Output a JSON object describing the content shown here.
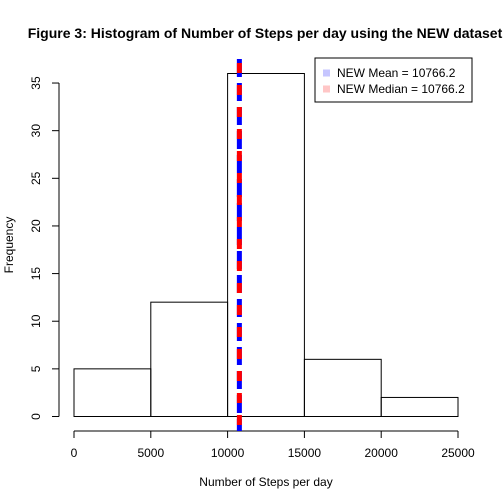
{
  "chart_data": {
    "type": "bar",
    "title": "Figure 3: Histogram of Number of Steps per day using the NEW dataset",
    "xlabel": "Number of Steps per day",
    "ylabel": "Frequency",
    "bins": [
      {
        "from": 0,
        "to": 5000,
        "count": 5
      },
      {
        "from": 5000,
        "to": 10000,
        "count": 12
      },
      {
        "from": 10000,
        "to": 15000,
        "count": 36
      },
      {
        "from": 15000,
        "to": 20000,
        "count": 6
      },
      {
        "from": 20000,
        "to": 25000,
        "count": 2
      }
    ],
    "xlim": [
      0,
      25000
    ],
    "ylim": [
      0,
      36
    ],
    "xticks": [
      0,
      5000,
      10000,
      15000,
      20000,
      25000
    ],
    "yticks": [
      0,
      5,
      10,
      15,
      20,
      25,
      30,
      35
    ],
    "grid": false,
    "legend_position": "top-right",
    "lines": [
      {
        "name": "NEW Mean",
        "value": 10766.2,
        "color": "#0000ff",
        "style": "dashed"
      },
      {
        "name": "NEW Median",
        "value": 10766.2,
        "color": "#ff0000",
        "style": "dashed"
      }
    ],
    "legend": [
      {
        "label": "NEW Mean =  10766.2",
        "color": "#c6c6ff"
      },
      {
        "label": "NEW Median =  10766.2",
        "color": "#ffc6c6"
      }
    ]
  }
}
